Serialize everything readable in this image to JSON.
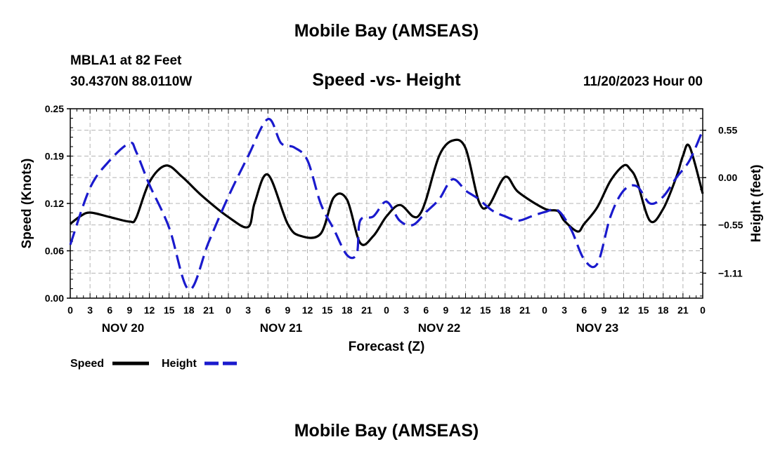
{
  "title": "Mobile Bay (AMSEAS)",
  "title_repeat": "Mobile Bay (AMSEAS)",
  "station": "MBLA1 at 82 Feet",
  "coords": "30.4370N  88.0110W",
  "runtime": "11/20/2023 Hour 00",
  "colors": {
    "speed": "#000000",
    "height": "#1a1acd",
    "grid": "#b4b4b4"
  },
  "chart_data": {
    "type": "line",
    "title": "Speed -vs- Height",
    "xlabel": "Forecast (Z)",
    "ylabel": "Speed (Knots)",
    "y2label": "Height (feet)",
    "xlim": [
      0,
      96
    ],
    "ylim": [
      0,
      0.25
    ],
    "y2lim": [
      -1.4,
      0.8
    ],
    "x_tick_labels": [
      "0",
      "3",
      "6",
      "9",
      "12",
      "15",
      "18",
      "21",
      "0",
      "3",
      "6",
      "9",
      "12",
      "15",
      "18",
      "21",
      "0",
      "3",
      "6",
      "9",
      "12",
      "15",
      "18",
      "21",
      "0",
      "3",
      "6",
      "9",
      "12",
      "15",
      "18",
      "21",
      "0"
    ],
    "date_labels": [
      {
        "x": 8,
        "label": "NOV 20"
      },
      {
        "x": 32,
        "label": "NOV 21"
      },
      {
        "x": 56,
        "label": "NOV 22"
      },
      {
        "x": 80,
        "label": "NOV 23"
      }
    ],
    "y_ticks": [
      "0.00",
      "0.06",
      "0.12",
      "0.19",
      "0.25"
    ],
    "y_tick_values": [
      0,
      0.0625,
      0.125,
      0.1875,
      0.25
    ],
    "y2_ticks": [
      "0.55",
      "0.00",
      "−0.55",
      "−1.11"
    ],
    "y2_tick_values": [
      0.55,
      0,
      -0.55,
      -1.11
    ],
    "series": [
      {
        "name": "Speed",
        "axis": "left",
        "style": "solid",
        "x": [
          0,
          1.5,
          3,
          6,
          9,
          10,
          12,
          14.5,
          17,
          20,
          24,
          27,
          28,
          30,
          33,
          35,
          38,
          40,
          42,
          44,
          46,
          48,
          50,
          52,
          53,
          54,
          56,
          58,
          60,
          62,
          63.5,
          66,
          68,
          72,
          74,
          75,
          77,
          78,
          80,
          82,
          84,
          85,
          86,
          88,
          90,
          92,
          93,
          94,
          96
        ],
        "values": [
          0.098,
          0.108,
          0.113,
          0.107,
          0.101,
          0.106,
          0.153,
          0.175,
          0.16,
          0.135,
          0.107,
          0.094,
          0.126,
          0.163,
          0.098,
          0.082,
          0.085,
          0.133,
          0.13,
          0.073,
          0.082,
          0.108,
          0.123,
          0.108,
          0.11,
          0.13,
          0.188,
          0.208,
          0.198,
          0.128,
          0.122,
          0.16,
          0.14,
          0.118,
          0.115,
          0.102,
          0.088,
          0.098,
          0.12,
          0.155,
          0.175,
          0.17,
          0.155,
          0.102,
          0.118,
          0.16,
          0.188,
          0.2,
          0.138
        ]
      },
      {
        "name": "Height",
        "axis": "right",
        "style": "dashed",
        "x": [
          0,
          3,
          6,
          9,
          10,
          12,
          15,
          18,
          21,
          24,
          27,
          30,
          32,
          34,
          36,
          38,
          40,
          42,
          43.5,
          44,
          46,
          48,
          50,
          52,
          54,
          56,
          58,
          60,
          61,
          62,
          64,
          66,
          68,
          70,
          72,
          74,
          76,
          78,
          80,
          82,
          84,
          86,
          88,
          90,
          92,
          94,
          96
        ],
        "values": [
          -0.78,
          -0.12,
          0.2,
          0.4,
          0.3,
          -0.08,
          -0.58,
          -1.3,
          -0.75,
          -0.22,
          0.25,
          0.68,
          0.4,
          0.35,
          0.2,
          -0.3,
          -0.6,
          -0.9,
          -0.88,
          -0.5,
          -0.45,
          -0.28,
          -0.5,
          -0.55,
          -0.4,
          -0.25,
          -0.02,
          -0.15,
          -0.2,
          -0.25,
          -0.38,
          -0.45,
          -0.5,
          -0.45,
          -0.4,
          -0.38,
          -0.6,
          -0.95,
          -1.0,
          -0.45,
          -0.15,
          -0.1,
          -0.3,
          -0.22,
          0.0,
          0.2,
          0.55
        ]
      }
    ],
    "legend": [
      {
        "label": "Speed",
        "series": "Speed"
      },
      {
        "label": "Height",
        "series": "Height"
      }
    ],
    "grid": true,
    "legend_position": "bottom-left"
  }
}
